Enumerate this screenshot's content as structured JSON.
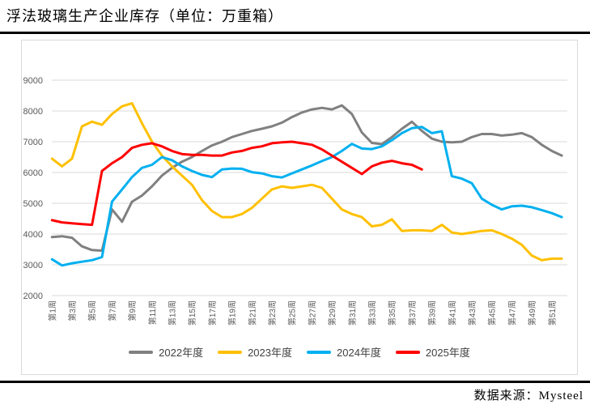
{
  "footer": {
    "source_label": "数据来源：Mysteel"
  },
  "colors": {
    "grid": "#d9d9d9",
    "axis_text": "#595959",
    "rule": "#000000",
    "panel_border": "#d9d9d9"
  },
  "chart_data": {
    "type": "line",
    "title": "浮法玻璃生产企业库存（单位：万重箱）",
    "xlabel": "",
    "ylabel": "",
    "ylim": [
      2000,
      9000
    ],
    "yticks": [
      2000,
      3000,
      4000,
      5000,
      6000,
      7000,
      8000,
      9000
    ],
    "grid": "horizontal",
    "legend_position": "bottom",
    "x_weeks": 52,
    "categories": [
      "第1周",
      "第3周",
      "第5周",
      "第7周",
      "第9周",
      "第11周",
      "第13周",
      "第15周",
      "第17周",
      "第19周",
      "第21周",
      "第23周",
      "第25周",
      "第27周",
      "第29周",
      "第31周",
      "第33周",
      "第35周",
      "第37周",
      "第39周",
      "第41周",
      "第43周",
      "第45周",
      "第47周",
      "第49周",
      "第51周"
    ],
    "series": [
      {
        "name": "2022年度",
        "color": "#808080",
        "values": [
          3900,
          3930,
          3880,
          3600,
          3480,
          3460,
          4800,
          4400,
          5050,
          5250,
          5550,
          5900,
          6150,
          6350,
          6500,
          6700,
          6880,
          7000,
          7150,
          7250,
          7350,
          7420,
          7500,
          7620,
          7800,
          7950,
          8050,
          8100,
          8050,
          8180,
          7900,
          7300,
          6960,
          6920,
          7150,
          7420,
          7650,
          7350,
          7100,
          7000,
          6980,
          7000,
          7150,
          7250,
          7250,
          7200,
          7230,
          7280,
          7150,
          6900,
          6700,
          6550
        ]
      },
      {
        "name": "2023年度",
        "color": "#FFC000",
        "values": [
          6450,
          6200,
          6450,
          7500,
          7650,
          7550,
          7900,
          8150,
          8250,
          7600,
          7000,
          6550,
          6200,
          5900,
          5600,
          5100,
          4750,
          4550,
          4550,
          4650,
          4850,
          5150,
          5450,
          5550,
          5500,
          5550,
          5600,
          5500,
          5150,
          4800,
          4650,
          4550,
          4250,
          4300,
          4480,
          4100,
          4120,
          4120,
          4100,
          4300,
          4050,
          4000,
          4050,
          4100,
          4120,
          4000,
          3850,
          3650,
          3300,
          3150,
          3200,
          3200
        ]
      },
      {
        "name": "2024年度",
        "color": "#00B0F0",
        "values": [
          3180,
          2980,
          3050,
          3100,
          3150,
          3250,
          5050,
          5450,
          5850,
          6150,
          6250,
          6500,
          6400,
          6200,
          6050,
          5920,
          5850,
          6100,
          6130,
          6120,
          6010,
          5970,
          5880,
          5840,
          5970,
          6100,
          6230,
          6370,
          6500,
          6700,
          6930,
          6780,
          6760,
          6850,
          7050,
          7280,
          7440,
          7480,
          7280,
          7340,
          5880,
          5800,
          5650,
          5150,
          4950,
          4800,
          4900,
          4920,
          4870,
          4780,
          4680,
          4550
        ]
      },
      {
        "name": "2025年度",
        "color": "#FF0000",
        "values": [
          4450,
          4380,
          4350,
          4320,
          4300,
          6050,
          6300,
          6500,
          6800,
          6900,
          6950,
          6850,
          6700,
          6600,
          6570,
          6570,
          6550,
          6550,
          6650,
          6700,
          6800,
          6850,
          6950,
          6980,
          7000,
          6950,
          6900,
          6750,
          6550,
          6350,
          6150,
          5950,
          6200,
          6320,
          6380,
          6300,
          6250,
          6100
        ]
      }
    ]
  }
}
